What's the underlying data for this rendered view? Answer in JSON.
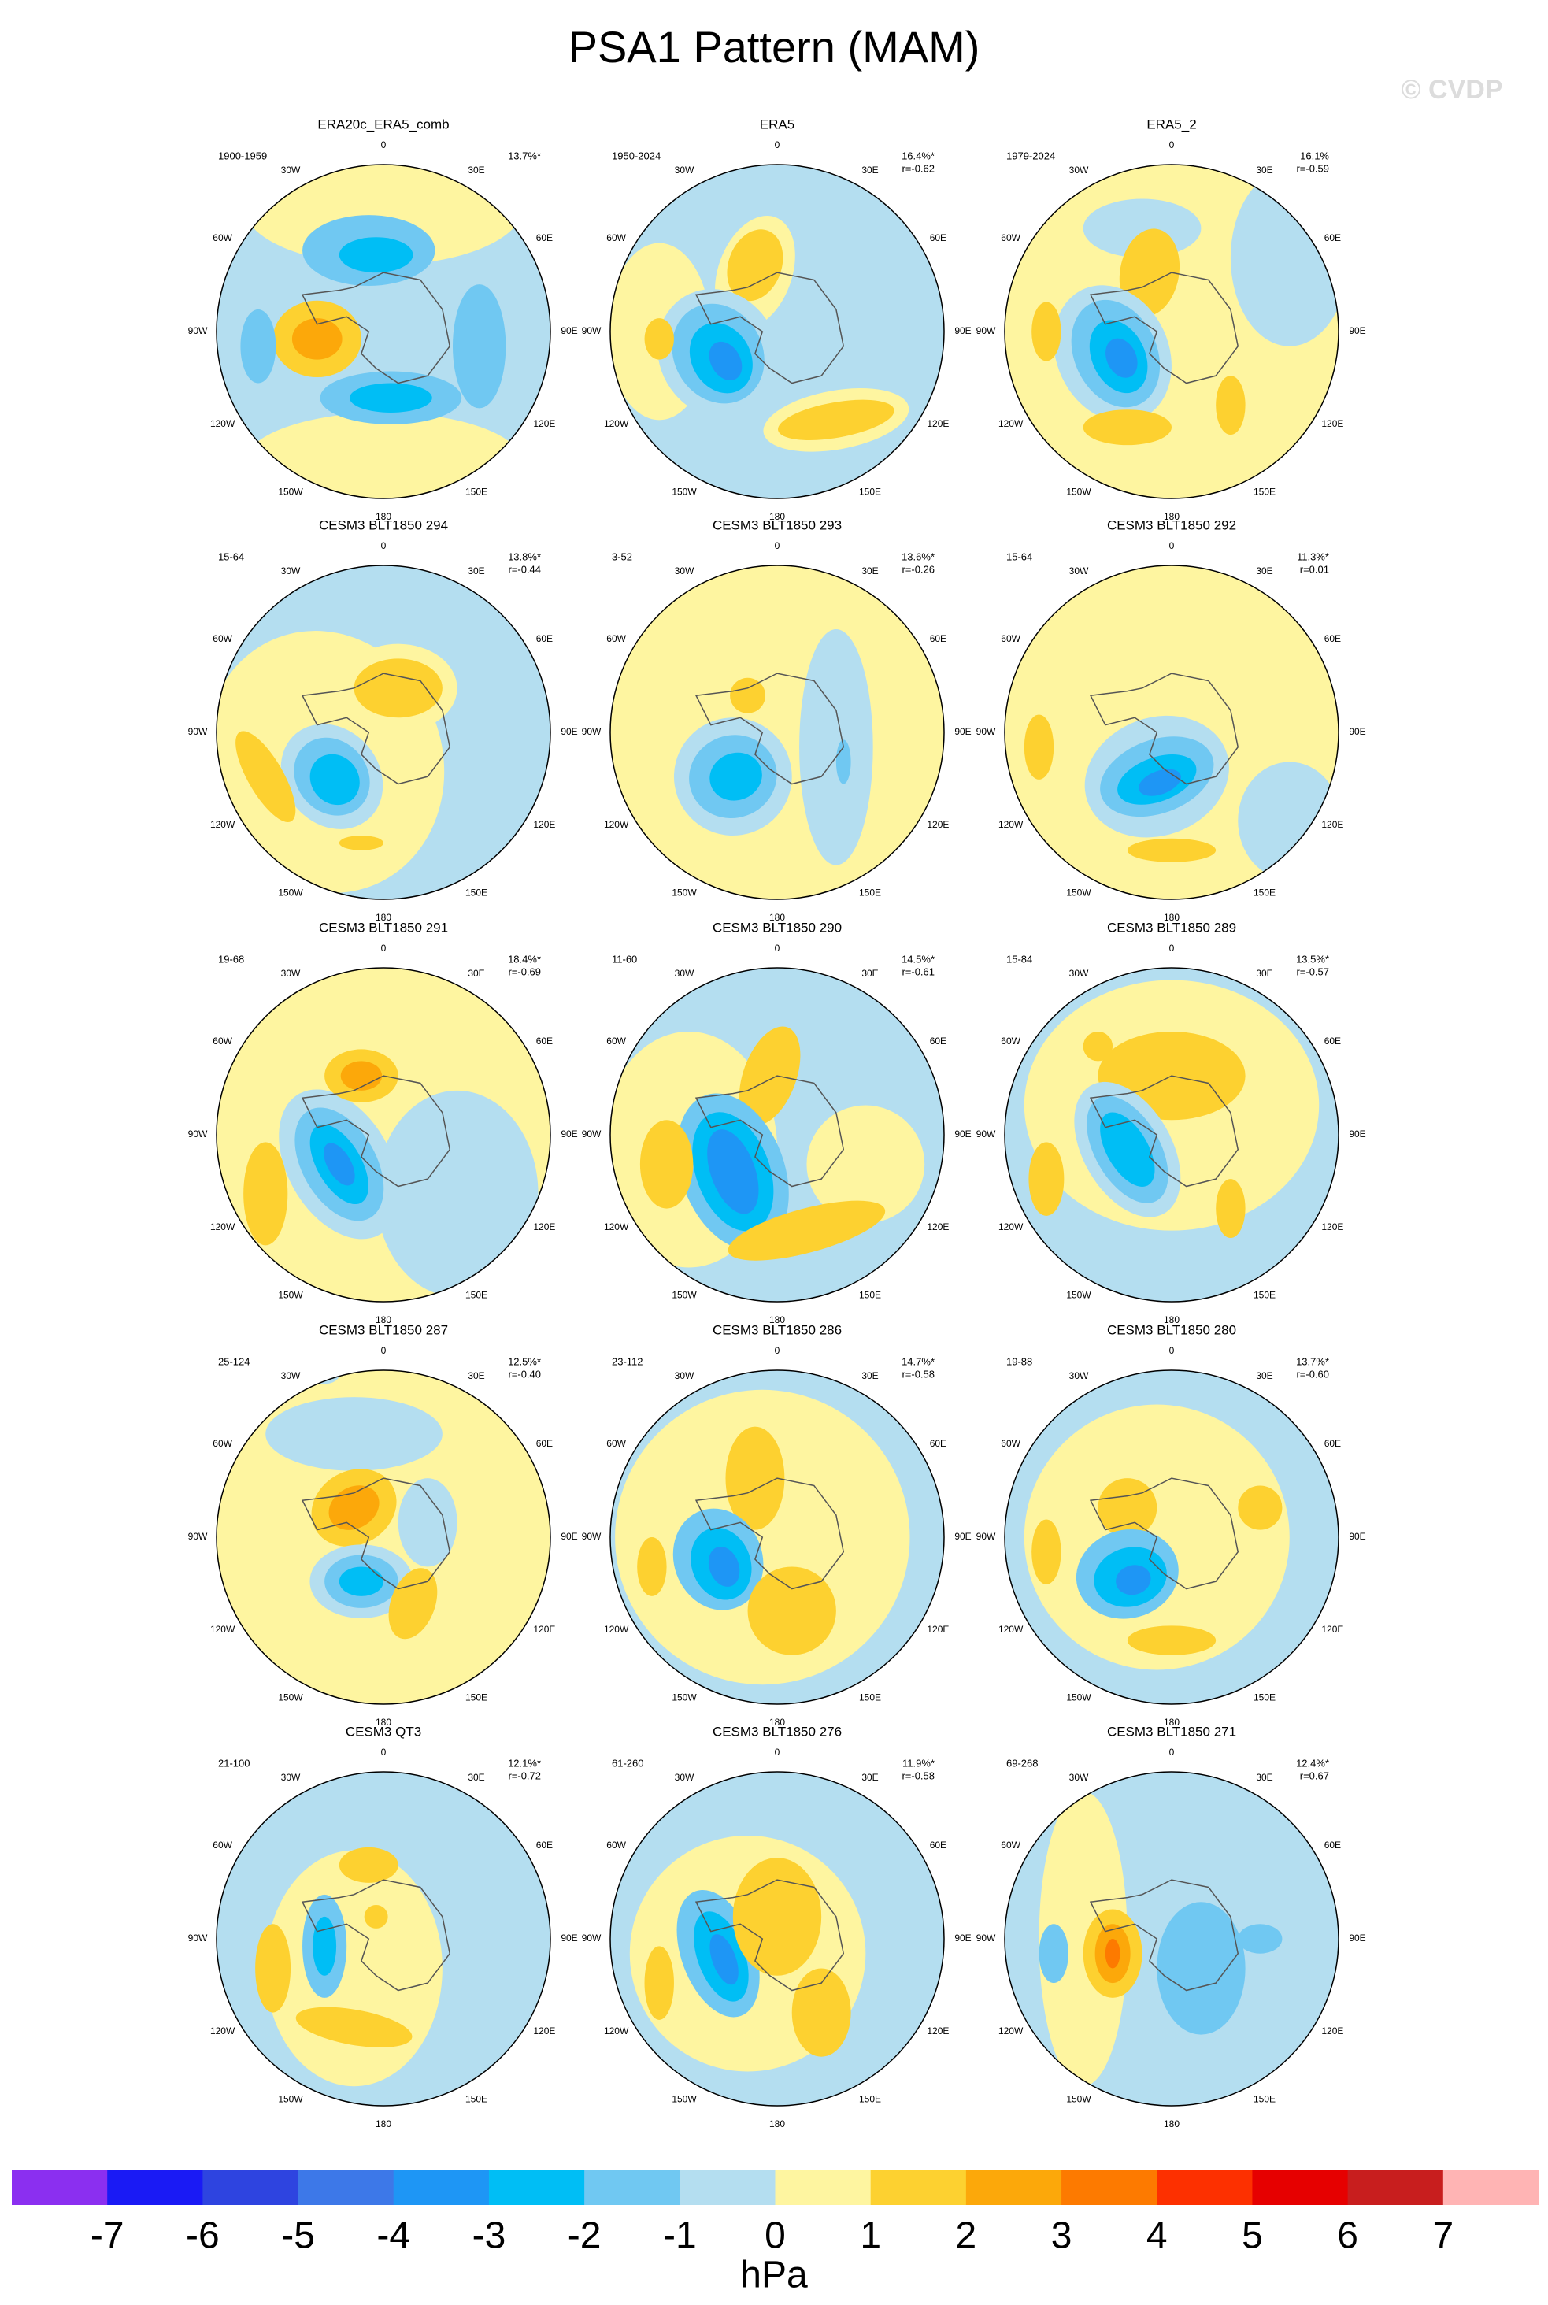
{
  "header": {
    "title": "PSA1 Pattern (MAM)",
    "watermark": "© CVDP"
  },
  "lon_labels": [
    "0",
    "30E",
    "60E",
    "90E",
    "120E",
    "150E",
    "180",
    "150W",
    "120W",
    "90W",
    "60W",
    "30W"
  ],
  "panels": [
    {
      "title": "ERA20c_ERA5_comb",
      "period": "1900-1959",
      "pct": "13.7%*"
    },
    {
      "title": "ERA5",
      "period": "1950-2024",
      "pct": "16.4%*",
      "r": "r=-0.62"
    },
    {
      "title": "ERA5_2",
      "period": "1979-2024",
      "pct": "16.1%",
      "r": "r=-0.59"
    },
    {
      "title": "CESM3 BLT1850 294",
      "period": "15-64",
      "pct": "13.8%*",
      "r": "r=-0.44"
    },
    {
      "title": "CESM3 BLT1850 293",
      "period": "3-52",
      "pct": "13.6%*",
      "r": "r=-0.26"
    },
    {
      "title": "CESM3 BLT1850 292",
      "period": "15-64",
      "pct": "11.3%*",
      "r": "r=0.01"
    },
    {
      "title": "CESM3 BLT1850 291",
      "period": "19-68",
      "pct": "18.4%*",
      "r": "r=-0.69"
    },
    {
      "title": "CESM3 BLT1850 290",
      "period": "11-60",
      "pct": "14.5%*",
      "r": "r=-0.61"
    },
    {
      "title": "CESM3 BLT1850 289",
      "period": "15-84",
      "pct": "13.5%*",
      "r": "r=-0.57"
    },
    {
      "title": "CESM3 BLT1850 287",
      "period": "25-124",
      "pct": "12.5%*",
      "r": "r=-0.40"
    },
    {
      "title": "CESM3 BLT1850 286",
      "period": "23-112",
      "pct": "14.7%*",
      "r": "r=-0.58"
    },
    {
      "title": "CESM3 BLT1850 280",
      "period": "19-88",
      "pct": "13.7%*",
      "r": "r=-0.60"
    },
    {
      "title": "CESM3 QT3",
      "period": "21-100",
      "pct": "12.1%*",
      "r": "r=-0.72"
    },
    {
      "title": "CESM3 BLT1850 276",
      "period": "61-260",
      "pct": "11.9%*",
      "r": "r=-0.58"
    },
    {
      "title": "CESM3 BLT1850 271",
      "period": "69-268",
      "pct": "12.4%*",
      "r": "r=0.67"
    }
  ],
  "colorbar": {
    "colors": [
      "#8b2ff0",
      "#1a1af5",
      "#2e44e0",
      "#3d78e8",
      "#1e96f5",
      "#00bef5",
      "#70c8f2",
      "#b4def0",
      "#fef5a0",
      "#fdd130",
      "#fca80a",
      "#fd7a00",
      "#fd3000",
      "#e60000",
      "#c81e1e",
      "#ffb4b4"
    ],
    "ticks": [
      -7,
      -6,
      -5,
      -4,
      -3,
      -2,
      -1,
      0,
      1,
      2,
      3,
      4,
      5,
      6,
      7
    ],
    "label": "hPa"
  }
}
